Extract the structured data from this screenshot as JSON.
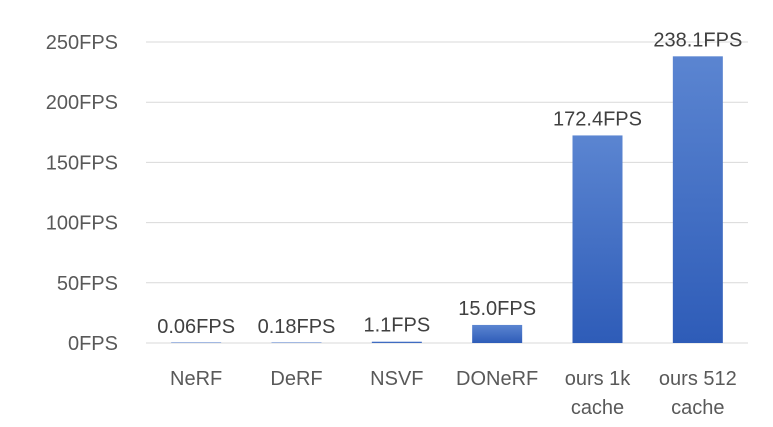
{
  "chart_data": {
    "type": "bar",
    "title": "",
    "xlabel": "",
    "ylabel": "",
    "categories": [
      [
        "NeRF"
      ],
      [
        "DeRF"
      ],
      [
        "NSVF"
      ],
      [
        "DONeRF"
      ],
      [
        "ours 1k",
        "cache"
      ],
      [
        "ours 512",
        "cache"
      ]
    ],
    "values": [
      0.06,
      0.18,
      1.1,
      15.0,
      172.4,
      238.1
    ],
    "data_labels": [
      "0.06FPS",
      "0.18FPS",
      "1.1FPS",
      "15.0FPS",
      "172.4FPS",
      "238.1FPS"
    ],
    "ylim": [
      0,
      250
    ],
    "y_ticks": [
      0,
      50,
      100,
      150,
      200,
      250
    ],
    "y_tick_labels": [
      "0FPS",
      "50FPS",
      "100FPS",
      "150FPS",
      "200FPS",
      "250FPS"
    ],
    "grid": true,
    "legend": "none",
    "colors": {
      "bar_top": "#5b85d1",
      "bar_bottom": "#2e5cb8",
      "grid": "#d9d9d9",
      "axis_text": "#595959",
      "label_text": "#404040"
    }
  }
}
